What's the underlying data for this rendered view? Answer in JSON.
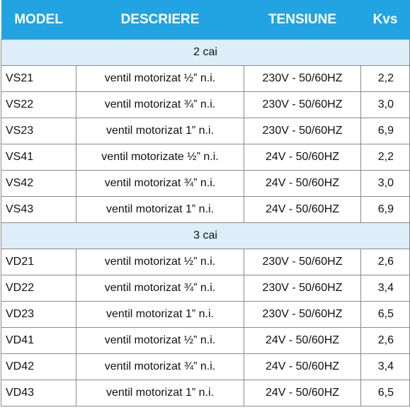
{
  "header": {
    "model": "MODEL",
    "description": "DESCRIERE",
    "voltage": "TENSIUNE",
    "kvs": "Kvs"
  },
  "groups": [
    {
      "label": "2 cai",
      "rows": [
        {
          "model": "VS21",
          "description": "ventil motorizat ½” n.i.",
          "voltage": "230V - 50/60HZ",
          "kvs": "2,2"
        },
        {
          "model": "VS22",
          "description": "ventil motorizat ¾” n.i.",
          "voltage": "230V - 50/60HZ",
          "kvs": "3,0"
        },
        {
          "model": "VS23",
          "description": "ventil motorizat 1” n.i.",
          "voltage": "230V - 50/60HZ",
          "kvs": "6,9"
        },
        {
          "model": "VS41",
          "description": "ventil motorizate ½” n.i.",
          "voltage": "24V - 50/60HZ",
          "kvs": "2,2"
        },
        {
          "model": "VS42",
          "description": "ventil motorizat ¾” n.i.",
          "voltage": "24V - 50/60HZ",
          "kvs": "3,0"
        },
        {
          "model": "VS43",
          "description": "ventil motorizat 1” n.i.",
          "voltage": "24V - 50/60HZ",
          "kvs": "6,9"
        }
      ]
    },
    {
      "label": "3 cai",
      "rows": [
        {
          "model": "VD21",
          "description": "ventil motorizat ½” n.i.",
          "voltage": "230V - 50/60HZ",
          "kvs": "2,6"
        },
        {
          "model": "VD22",
          "description": "ventil motorizat ¾” n.i.",
          "voltage": "230V - 50/60HZ",
          "kvs": "3,4"
        },
        {
          "model": "VD23",
          "description": "ventil motorizat 1” n.i.",
          "voltage": "230V - 50/60HZ",
          "kvs": "6,5"
        },
        {
          "model": "VD41",
          "description": "ventil motorizat ½” n.i.",
          "voltage": "24V - 50/60HZ",
          "kvs": "2,6"
        },
        {
          "model": "VD42",
          "description": "ventil motorizat ¾” n.i.",
          "voltage": "24V - 50/60HZ",
          "kvs": "3,4"
        },
        {
          "model": "VD43",
          "description": "ventil motorizat 1” n.i.",
          "voltage": "24V - 50/60HZ",
          "kvs": "6,5"
        }
      ]
    }
  ],
  "colors": {
    "header_background": "#22a4e2",
    "group_background": "#ddeef9",
    "border": "#8a8a8a"
  }
}
